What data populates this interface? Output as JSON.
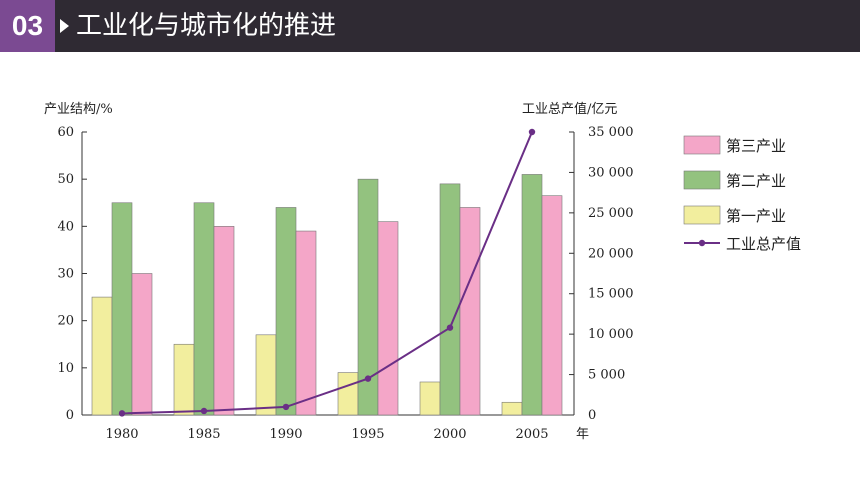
{
  "header": {
    "badge": "03",
    "title": "工业化与城市化的推进"
  },
  "colors": {
    "header_bg": "#2f2a33",
    "badge_bg": "#7b4a92",
    "tertiary": "#f4a6c8",
    "secondary": "#93c27f",
    "primary": "#f2ee9e",
    "line": "#6a2f86"
  },
  "chart_data": {
    "type": "bar",
    "title": "",
    "categories": [
      "1980",
      "1985",
      "1990",
      "1995",
      "2000",
      "2005"
    ],
    "xlabel_unit": "年",
    "ylabel_left": "产业结构/%",
    "ylabel_right": "工业总产值/亿元",
    "ylim_left": [
      0,
      60
    ],
    "yticks_left": [
      "0",
      "10",
      "20",
      "30",
      "40",
      "50",
      "60"
    ],
    "ylim_right": [
      0,
      35000
    ],
    "yticks_right": [
      "0",
      "5 000",
      "10 000",
      "15 000",
      "20 000",
      "25 000",
      "30 000",
      "35 000"
    ],
    "series": [
      {
        "name": "第一产业",
        "axis": "left",
        "values": [
          25,
          15,
          17,
          9,
          7,
          2.7
        ]
      },
      {
        "name": "第二产业",
        "axis": "left",
        "values": [
          45,
          45,
          44,
          50,
          49,
          51
        ]
      },
      {
        "name": "第三产业",
        "axis": "left",
        "values": [
          30,
          40,
          39,
          41,
          44,
          46.5
        ]
      },
      {
        "name": "工业总产值",
        "axis": "right",
        "type": "line",
        "values": [
          200,
          500,
          1000,
          4500,
          10800,
          35000
        ]
      }
    ],
    "legend": {
      "placement": "right",
      "items": [
        "第三产业",
        "第二产业",
        "第一产业",
        "工业总产值"
      ]
    },
    "grid": false
  }
}
